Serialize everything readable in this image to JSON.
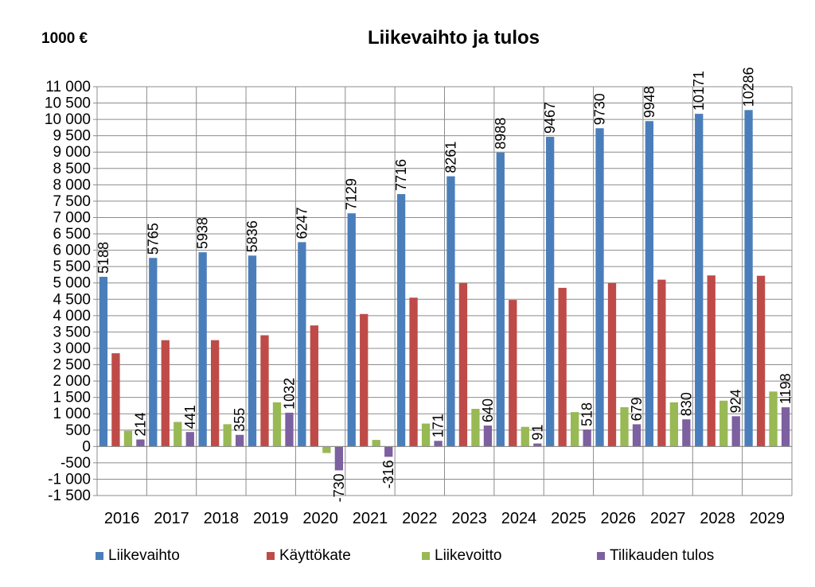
{
  "unit_label": "1000 €",
  "chart_data": {
    "type": "bar",
    "title": "Liikevaihto ja tulos",
    "xlabel": "",
    "ylabel": "",
    "ylim": [
      -1500,
      11000
    ],
    "ytick_step": 500,
    "ytick_labels": [
      "-1 500",
      "-1 000",
      "-500",
      "0",
      "500",
      "1 000",
      "1 500",
      "2 000",
      "2 500",
      "3 000",
      "3 500",
      "4 000",
      "4 500",
      "5 000",
      "5 500",
      "6 000",
      "6 500",
      "7 000",
      "7 500",
      "8 000",
      "8 500",
      "9 000",
      "9 500",
      "10 000",
      "10 500",
      "11 000"
    ],
    "grid": true,
    "legend_position": "bottom",
    "categories": [
      "2016",
      "2017",
      "2018",
      "2019",
      "2020",
      "2021",
      "2022",
      "2023",
      "2024",
      "2025",
      "2026",
      "2027",
      "2028",
      "2029"
    ],
    "series": [
      {
        "name": "Liikevaihto",
        "color": "#4a7ebb",
        "values": [
          5188,
          5765,
          5938,
          5836,
          6247,
          7129,
          7716,
          8261,
          8988,
          9467,
          9730,
          9948,
          10171,
          10286
        ],
        "labeled": true
      },
      {
        "name": "Käyttökate",
        "color": "#be4b48",
        "values": [
          2850,
          3250,
          3250,
          3400,
          3700,
          4050,
          4550,
          5000,
          4480,
          4850,
          5000,
          5100,
          5230,
          5220
        ],
        "labeled": false
      },
      {
        "name": "Liikevoitto",
        "color": "#98b954",
        "values": [
          480,
          750,
          680,
          1350,
          -200,
          200,
          700,
          1150,
          600,
          1050,
          1200,
          1350,
          1400,
          1680
        ],
        "labeled": false
      },
      {
        "name": "Tilikauden tulos",
        "color": "#7d60a0",
        "values": [
          214,
          441,
          355,
          1032,
          -730,
          -316,
          171,
          640,
          91,
          518,
          679,
          830,
          924,
          1198
        ],
        "labeled": true
      }
    ]
  }
}
